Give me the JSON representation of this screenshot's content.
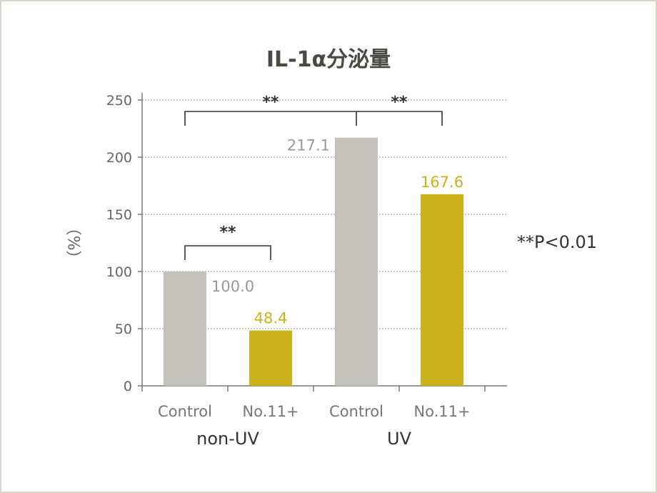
{
  "chart_data": {
    "type": "bar",
    "title": "IL-1α分泌量",
    "ylabel": "（%）",
    "ylim": [
      0,
      250
    ],
    "yticks": [
      0,
      50,
      100,
      150,
      200,
      250
    ],
    "grid": true,
    "groups": [
      {
        "name": "non-UV",
        "bars": [
          {
            "category": "Control",
            "value": 100.0,
            "label": "100.0",
            "color": "#c4c1bb"
          },
          {
            "category": "No.11+",
            "value": 48.4,
            "label": "48.4",
            "color": "#c9b21b"
          }
        ]
      },
      {
        "name": "UV",
        "bars": [
          {
            "category": "Control",
            "value": 217.1,
            "label": "217.1",
            "color": "#c4c1bb"
          },
          {
            "category": "No.11+",
            "value": 167.6,
            "label": "167.6",
            "color": "#c9b21b"
          }
        ]
      }
    ],
    "significance": [
      {
        "between": [
          "non-UV Control",
          "non-UV No.11+"
        ],
        "mark": "**"
      },
      {
        "between": [
          "non-UV Control",
          "UV Control"
        ],
        "mark": "**"
      },
      {
        "between": [
          "UV Control",
          "UV No.11+"
        ],
        "mark": "**"
      }
    ],
    "annotation": "**P<0.01"
  }
}
